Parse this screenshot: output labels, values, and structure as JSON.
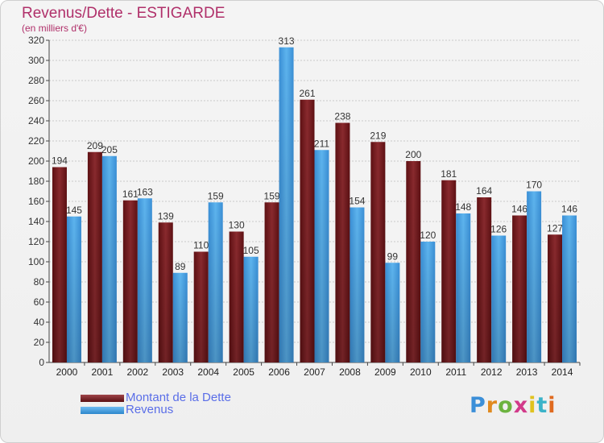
{
  "title": "Revenus/Dette - ESTIGARDE",
  "subtitle": "(en milliers d'€)",
  "logo_text": "Proxiti",
  "colors": {
    "dette": "#7b1c1f",
    "revenus": "#4aa3e6",
    "title": "#b0306a",
    "legend_text": "#5a6ee8"
  },
  "legend": [
    {
      "label": "Montant de la Dette",
      "color": "#7b1c1f"
    },
    {
      "label": "Revenus",
      "color": "#4aa3e6"
    }
  ],
  "chart_data": {
    "type": "bar",
    "title": "Revenus/Dette - ESTIGARDE",
    "subtitle": "(en milliers d'€)",
    "categories": [
      "2000",
      "2001",
      "2002",
      "2003",
      "2004",
      "2005",
      "2006",
      "2007",
      "2008",
      "2009",
      "2010",
      "2011",
      "2012",
      "2013",
      "2014"
    ],
    "series": [
      {
        "name": "Montant de la Dette",
        "values": [
          194,
          209,
          161,
          139,
          110,
          130,
          159,
          261,
          238,
          219,
          200,
          181,
          164,
          146,
          127
        ]
      },
      {
        "name": "Revenus",
        "values": [
          145,
          205,
          163,
          89,
          159,
          105,
          313,
          211,
          154,
          99,
          120,
          148,
          126,
          170,
          146
        ]
      }
    ],
    "ylim": [
      0,
      320
    ],
    "yticks": [
      0,
      20,
      40,
      60,
      80,
      100,
      120,
      140,
      160,
      180,
      200,
      220,
      240,
      260,
      280,
      300,
      320
    ],
    "grid": true,
    "legend_position": "bottom-left"
  }
}
